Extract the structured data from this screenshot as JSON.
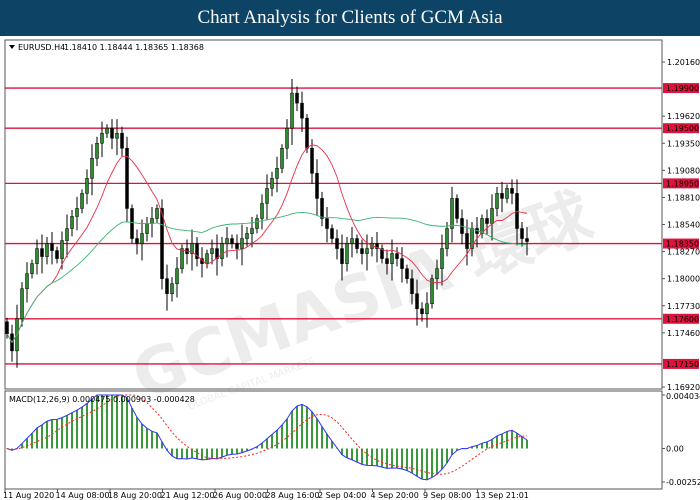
{
  "header": {
    "title": "Chart Analysis for Clients of GCM Asia"
  },
  "chart_data": {
    "type": "candlestick",
    "symbol_label": "EURUSD.H4",
    "quote": "1.18410 1.18444 1.18365 1.18368",
    "ylim": [
      1.1692,
      1.2016
    ],
    "y_ticks": [
      "1.20160",
      "1.19620",
      "1.19350",
      "1.19080",
      "1.18810",
      "1.18540",
      "1.18270",
      "1.18000",
      "1.17730",
      "1.17460",
      "1.16920"
    ],
    "levels": [
      "1.19900",
      "1.19500",
      "1.18950",
      "1.18350",
      "1.17600",
      "1.17150"
    ],
    "x_ticks": [
      "11 Aug 2020",
      "14 Aug 08:00",
      "18 Aug 20:00",
      "21 Aug 12:00",
      "26 Aug 00:00",
      "28 Aug 16:00",
      "2 Sep 04:00",
      "4 Sep 20:00",
      "9 Sep 08:00",
      "13 Sep 21:01"
    ],
    "closes": [
      1.1745,
      1.1728,
      1.176,
      1.179,
      1.1805,
      1.1815,
      1.183,
      1.1822,
      1.1835,
      1.1828,
      1.182,
      1.1838,
      1.185,
      1.1862,
      1.187,
      1.1885,
      1.19,
      1.192,
      1.1935,
      1.1945,
      1.195,
      1.194,
      1.1945,
      1.193,
      1.187,
      1.184,
      1.1835,
      1.1845,
      1.1855,
      1.186,
      1.187,
      1.18,
      1.1785,
      1.1795,
      1.181,
      1.183,
      1.1825,
      1.1835,
      1.182,
      1.1815,
      1.1825,
      1.183,
      1.182,
      1.1835,
      1.184,
      1.1835,
      1.183,
      1.184,
      1.1845,
      1.185,
      1.186,
      1.1875,
      1.189,
      1.19,
      1.191,
      1.193,
      1.195,
      1.1985,
      1.1975,
      1.196,
      1.193,
      1.1905,
      1.188,
      1.186,
      1.185,
      1.184,
      1.183,
      1.1815,
      1.1835,
      1.184,
      1.183,
      1.1825,
      1.183,
      1.1835,
      1.183,
      1.182,
      1.1815,
      1.1825,
      1.182,
      1.181,
      1.18,
      1.1785,
      1.177,
      1.1765,
      1.1775,
      1.18,
      1.181,
      1.183,
      1.185,
      1.188,
      1.186,
      1.1845,
      1.183,
      1.185,
      1.1845,
      1.186,
      1.1855,
      1.187,
      1.1885,
      1.188,
      1.189,
      1.1885,
      1.185,
      1.184,
      1.1837
    ],
    "colors": {
      "bull": "#2e8b2e",
      "bear": "#000000",
      "levels": "#dc143c",
      "ma_fast": "#e8304a",
      "ma_slow": "#3cb371",
      "macd": "#3030ff",
      "signal": "#ff2020",
      "histogram": "#3a9a3a"
    },
    "macd": {
      "label": "MACD(12,26,9) 0.000475 0.000903 -0.000428",
      "ylim": [
        -0.002524,
        0.004034
      ],
      "y_ticks": [
        "0.004034",
        "0.00",
        "-0.002524"
      ]
    }
  },
  "watermark": {
    "text": "GCMASIA 環球",
    "subtext": "GLOBAL CAPITAL MARKETS"
  }
}
